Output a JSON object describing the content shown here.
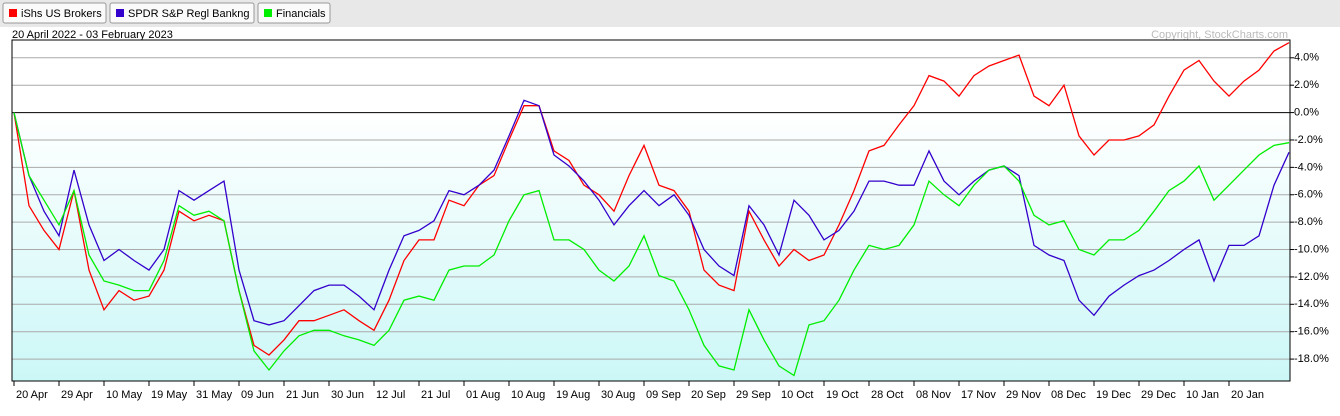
{
  "chart_data": {
    "type": "line",
    "subtitle": "20 April 2022 - 03 February 2023",
    "annotation": "Copyright, StockCharts.com",
    "legend": "top-left",
    "grid": true,
    "ylim": [
      -19.6,
      5.3
    ],
    "yticks": [
      {
        "value": 4,
        "label": "4.0%"
      },
      {
        "value": 2,
        "label": "2.0%"
      },
      {
        "value": 0,
        "label": "0.0%"
      },
      {
        "value": -2,
        "label": "-2.0%"
      },
      {
        "value": -4,
        "label": "-4.0%"
      },
      {
        "value": -6,
        "label": "-6.0%"
      },
      {
        "value": -8,
        "label": "-8.0%"
      },
      {
        "value": -10,
        "label": "-10.0%"
      },
      {
        "value": -12,
        "label": "-12.0%"
      },
      {
        "value": -14,
        "label": "-14.0%"
      },
      {
        "value": -16,
        "label": "-16.0%"
      },
      {
        "value": -18,
        "label": "-18.0%"
      }
    ],
    "categories": [
      "20 Apr",
      null,
      null,
      "29 Apr",
      null,
      null,
      "10 May",
      null,
      null,
      "19 May",
      null,
      null,
      "31 May",
      null,
      null,
      "09 Jun",
      null,
      null,
      "21 Jun",
      null,
      null,
      "30 Jun",
      null,
      null,
      "12 Jul",
      null,
      null,
      "21 Jul",
      null,
      null,
      "01 Aug",
      null,
      null,
      "10 Aug",
      null,
      null,
      "19 Aug",
      null,
      null,
      "30 Aug",
      null,
      null,
      "09 Sep",
      null,
      null,
      "20 Sep",
      null,
      null,
      "29 Sep",
      null,
      null,
      "10 Oct",
      null,
      null,
      "19 Oct",
      null,
      null,
      "28 Oct",
      null,
      null,
      "08 Nov",
      null,
      null,
      "17 Nov",
      null,
      null,
      "29 Nov",
      null,
      null,
      "08 Dec",
      null,
      null,
      "19 Dec",
      null,
      null,
      "29 Dec",
      null,
      null,
      "10 Jan",
      null,
      null,
      "20 Jan",
      null,
      null,
      null,
      null
    ],
    "series": [
      {
        "name": "iShs US Brokers",
        "color": "#ff0000",
        "values": [
          0,
          -6.8,
          -8.6,
          -10,
          -5.7,
          -11.5,
          -14.4,
          -13,
          -13.7,
          -13.4,
          -11.5,
          -7.2,
          -7.9,
          -7.5,
          -7.9,
          -13,
          -17,
          -17.7,
          -16.6,
          -15.2,
          -15.2,
          -14.8,
          -14.4,
          -15.2,
          -15.9,
          -13.7,
          -10.8,
          -9.3,
          -9.3,
          -6.4,
          -6.8,
          -5.3,
          -4.6,
          -2,
          0.5,
          0.5,
          -2.8,
          -3.5,
          -5.3,
          -6,
          -7.2,
          -4.6,
          -2.4,
          -5.3,
          -5.7,
          -7.2,
          -11.5,
          -12.6,
          -13,
          -7.2,
          -9.3,
          -11.2,
          -10,
          -10.8,
          -10.4,
          -8.2,
          -5.7,
          -2.8,
          -2.4,
          -0.9,
          0.5,
          2.7,
          2.3,
          1.2,
          2.7,
          3.4,
          3.8,
          4.2,
          1.2,
          0.5,
          2,
          -1.7,
          -3.1,
          -2,
          -2,
          -1.7,
          -0.9,
          1.2,
          3.1,
          3.8,
          2.3,
          1.2,
          2.3,
          3.1,
          4.5,
          5.1
        ]
      },
      {
        "name": "SPDR S&P Regl Bankng",
        "color": "#3300cc",
        "values": [
          0,
          -4.6,
          -7.2,
          -9,
          -4.2,
          -8.2,
          -10.8,
          -10,
          -10.8,
          -11.5,
          -10,
          -5.7,
          -6.4,
          -5.7,
          -5,
          -11.5,
          -15.2,
          -15.5,
          -15.2,
          -14.1,
          -13,
          -12.6,
          -12.6,
          -13.4,
          -14.4,
          -11.5,
          -9,
          -8.6,
          -7.9,
          -5.7,
          -6,
          -5.3,
          -4.2,
          -1.7,
          0.9,
          0.5,
          -3.1,
          -3.9,
          -5,
          -6.4,
          -8.2,
          -6.8,
          -5.7,
          -6.8,
          -6,
          -7.5,
          -10,
          -11.2,
          -11.9,
          -6.8,
          -8.2,
          -10.4,
          -6.4,
          -7.5,
          -9.3,
          -8.6,
          -7.2,
          -5,
          -5,
          -5.3,
          -5.3,
          -2.8,
          -5,
          -6,
          -5,
          -4.2,
          -3.9,
          -4.6,
          -9.7,
          -10.4,
          -10.8,
          -13.7,
          -14.8,
          -13.4,
          -12.6,
          -11.9,
          -11.5,
          -10.8,
          -10,
          -9.3,
          -12.3,
          -9.7,
          -9.7,
          -9,
          -5.3,
          -2.9
        ]
      },
      {
        "name": "Financials",
        "color": "#00ee00",
        "values": [
          0,
          -4.6,
          -6.4,
          -8.2,
          -5.7,
          -10.4,
          -12.3,
          -12.6,
          -13,
          -13,
          -10.8,
          -6.8,
          -7.5,
          -7.2,
          -7.9,
          -13,
          -17.4,
          -18.8,
          -17.4,
          -16.3,
          -15.9,
          -15.9,
          -16.3,
          -16.6,
          -17,
          -15.9,
          -13.7,
          -13.4,
          -13.7,
          -11.5,
          -11.2,
          -11.2,
          -10.4,
          -7.9,
          -6,
          -5.7,
          -9.3,
          -9.3,
          -10,
          -11.5,
          -12.3,
          -11.2,
          -9,
          -11.9,
          -12.3,
          -14.4,
          -17,
          -18.5,
          -18.8,
          -14.4,
          -16.6,
          -18.5,
          -19.2,
          -15.5,
          -15.2,
          -13.7,
          -11.5,
          -9.7,
          -10,
          -9.7,
          -8.2,
          -5,
          -6,
          -6.8,
          -5.3,
          -4.2,
          -3.9,
          -5,
          -7.5,
          -8.2,
          -7.9,
          -10,
          -10.4,
          -9.3,
          -9.3,
          -8.6,
          -7.2,
          -5.7,
          -5,
          -3.9,
          -6.4,
          -5.3,
          -4.2,
          -3.1,
          -2.4,
          -2.2
        ]
      }
    ]
  }
}
